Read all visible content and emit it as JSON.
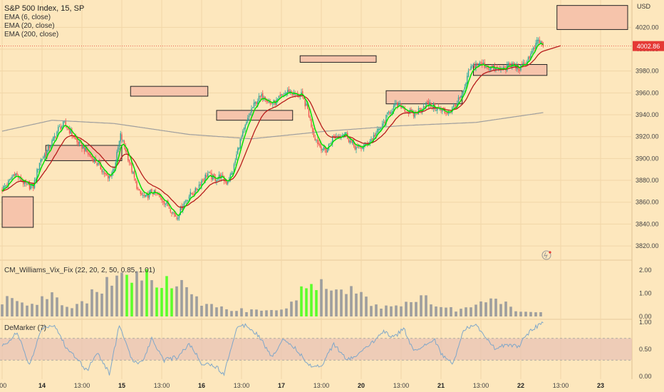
{
  "legend": {
    "title": "S&P 500 Index, 15, SP",
    "ema6": "EMA (6, close)",
    "ema20": "EMA (20, close)",
    "ema200": "EMA (200, close)"
  },
  "vix_label": "CM_Williams_Vix_Fix (22, 20, 2, 50, 0.85, 1.01)",
  "demarker_label": "DeMarker (7)",
  "currency": "USD",
  "last_price": "4002.86",
  "colors": {
    "bg": "#fde7bd",
    "up": "#26a69a",
    "down": "#ef5350",
    "ema6": "#00e000",
    "ema20": "#b71c1c",
    "ema200": "#9e9e9e",
    "vixGray": "#9e9e9e",
    "vixGreen": "#5cff2a",
    "demarker": "#7fa7c9",
    "price_tag": "#e53935",
    "box_fill": "#f6c4ab"
  },
  "chart_data": [
    {
      "type": "candlestick",
      "title": "S&P 500 Index, 15, SP",
      "ylabel": "USD",
      "ylim": [
        3807,
        4045
      ],
      "ytick_labels": [
        "4020.00",
        "4000.00",
        "3980.00",
        "3960.00",
        "3940.00",
        "3920.00",
        "3900.00",
        "3880.00",
        "3860.00",
        "3840.00",
        "3820.00"
      ],
      "yticks": [
        4020,
        4000,
        3980,
        3960,
        3940,
        3920,
        3900,
        3880,
        3860,
        3840,
        3820
      ],
      "xtick_labels": [
        ":00",
        "14",
        "13:00",
        "15",
        "13:00",
        "16",
        "13:00",
        "17",
        "13:00",
        "20",
        "13:00",
        "21",
        "13:00",
        "22",
        "13:00",
        "23"
      ],
      "bold_ticks": [
        "14",
        "15",
        "16",
        "17",
        "20",
        "21",
        "22",
        "23"
      ],
      "last": 4002.86,
      "series_waypoints": [
        [
          0,
          3872
        ],
        [
          5,
          3878
        ],
        [
          10,
          3887
        ],
        [
          15,
          3880
        ],
        [
          20,
          3875
        ],
        [
          25,
          3874
        ],
        [
          30,
          3897
        ],
        [
          35,
          3905
        ],
        [
          40,
          3915
        ],
        [
          45,
          3927
        ],
        [
          50,
          3932
        ],
        [
          55,
          3924
        ],
        [
          60,
          3915
        ],
        [
          65,
          3910
        ],
        [
          70,
          3903
        ],
        [
          75,
          3897
        ],
        [
          80,
          3890
        ],
        [
          85,
          3881
        ],
        [
          90,
          3892
        ],
        [
          95,
          3921
        ],
        [
          100,
          3905
        ],
        [
          105,
          3885
        ],
        [
          110,
          3868
        ],
        [
          115,
          3864
        ],
        [
          120,
          3870
        ],
        [
          125,
          3866
        ],
        [
          130,
          3861
        ],
        [
          135,
          3854
        ],
        [
          140,
          3846
        ],
        [
          145,
          3858
        ],
        [
          150,
          3866
        ],
        [
          155,
          3870
        ],
        [
          160,
          3880
        ],
        [
          165,
          3886
        ],
        [
          170,
          3881
        ],
        [
          175,
          3884
        ],
        [
          180,
          3878
        ],
        [
          185,
          3888
        ],
        [
          190,
          3913
        ],
        [
          195,
          3929
        ],
        [
          200,
          3945
        ],
        [
          205,
          3954
        ],
        [
          210,
          3958
        ],
        [
          215,
          3950
        ],
        [
          220,
          3952
        ],
        [
          225,
          3958
        ],
        [
          230,
          3962
        ],
        [
          235,
          3958
        ],
        [
          240,
          3958
        ],
        [
          245,
          3945
        ],
        [
          250,
          3921
        ],
        [
          255,
          3911
        ],
        [
          260,
          3907
        ],
        [
          265,
          3919
        ],
        [
          270,
          3921
        ],
        [
          275,
          3924
        ],
        [
          280,
          3914
        ],
        [
          285,
          3909
        ],
        [
          290,
          3911
        ],
        [
          295,
          3916
        ],
        [
          300,
          3923
        ],
        [
          305,
          3930
        ],
        [
          310,
          3942
        ],
        [
          315,
          3948
        ],
        [
          320,
          3948
        ],
        [
          325,
          3943
        ],
        [
          330,
          3940
        ],
        [
          335,
          3945
        ],
        [
          340,
          3950
        ],
        [
          345,
          3948
        ],
        [
          350,
          3945
        ],
        [
          355,
          3942
        ],
        [
          360,
          3944
        ],
        [
          365,
          3951
        ],
        [
          370,
          3960
        ],
        [
          375,
          3982
        ],
        [
          380,
          3986
        ],
        [
          385,
          3986
        ],
        [
          390,
          3984
        ],
        [
          395,
          3982
        ],
        [
          400,
          3981
        ],
        [
          405,
          3984
        ],
        [
          410,
          3986
        ],
        [
          415,
          3982
        ],
        [
          420,
          3988
        ],
        [
          425,
          3997
        ],
        [
          430,
          4008
        ],
        [
          434,
          4002.86
        ]
      ],
      "ema200_waypoints": [
        [
          0,
          3925
        ],
        [
          40,
          3935
        ],
        [
          90,
          3932
        ],
        [
          150,
          3922
        ],
        [
          200,
          3918
        ],
        [
          260,
          3925
        ],
        [
          320,
          3930
        ],
        [
          380,
          3933
        ],
        [
          434,
          3942
        ]
      ],
      "zones": [
        {
          "t0": 0,
          "t1": 25,
          "lo": 3837,
          "hi": 3865
        },
        {
          "t0": 35,
          "t1": 96,
          "lo": 3898,
          "hi": 3912
        },
        {
          "t0": 103,
          "t1": 165,
          "lo": 3957,
          "hi": 3966
        },
        {
          "t0": 172,
          "t1": 233,
          "lo": 3935,
          "hi": 3944
        },
        {
          "t0": 239,
          "t1": 300,
          "lo": 3988,
          "hi": 3994
        },
        {
          "t0": 308,
          "t1": 369,
          "lo": 3950,
          "hi": 3962
        },
        {
          "t0": 378,
          "t1": 437,
          "lo": 3976,
          "hi": 3986
        },
        {
          "t0": 445,
          "t1": 505,
          "lo": 4018,
          "hi": 4040
        }
      ]
    },
    {
      "type": "bar",
      "title": "CM_Williams_Vix_Fix (22, 20, 2, 50, 0.85, 1.01)",
      "ylim": [
        0,
        2.3
      ],
      "ytick_labels": [
        "2.00",
        "1.00",
        "0.00"
      ],
      "yticks": [
        2,
        1,
        0
      ],
      "envelope": [
        [
          0,
          0.9
        ],
        [
          20,
          0.5
        ],
        [
          40,
          1.0
        ],
        [
          55,
          0.3
        ],
        [
          75,
          1.3
        ],
        [
          85,
          1.6
        ],
        [
          95,
          2.0
        ],
        [
          105,
          2.0
        ],
        [
          120,
          2.1
        ],
        [
          135,
          2.1
        ],
        [
          145,
          1.4
        ],
        [
          160,
          0.6
        ],
        [
          180,
          0.4
        ],
        [
          205,
          0.3
        ],
        [
          225,
          0.3
        ],
        [
          245,
          1.5
        ],
        [
          258,
          1.6
        ],
        [
          270,
          1.3
        ],
        [
          285,
          1.2
        ],
        [
          300,
          0.5
        ],
        [
          320,
          0.6
        ],
        [
          335,
          1.0
        ],
        [
          350,
          0.5
        ],
        [
          370,
          0.3
        ],
        [
          385,
          0.8
        ],
        [
          400,
          0.7
        ],
        [
          415,
          0.3
        ],
        [
          434,
          0.2
        ]
      ],
      "green_ranges": [
        [
          100,
          105
        ],
        [
          114,
          118
        ],
        [
          124,
          137
        ],
        [
          240,
          253
        ]
      ]
    },
    {
      "type": "line",
      "title": "DeMarker (7)",
      "ylim": [
        -0.05,
        1.05
      ],
      "ytick_labels": [
        "1.00",
        "0.50",
        "0.00"
      ],
      "yticks": [
        1,
        0.5,
        0
      ],
      "band": [
        0.3,
        0.7
      ],
      "waypoints": [
        [
          0,
          0.55
        ],
        [
          12,
          0.8
        ],
        [
          22,
          0.2
        ],
        [
          32,
          0.9
        ],
        [
          42,
          0.95
        ],
        [
          52,
          0.5
        ],
        [
          60,
          0.35
        ],
        [
          68,
          0.1
        ],
        [
          76,
          0.45
        ],
        [
          86,
          0.05
        ],
        [
          94,
          0.95
        ],
        [
          104,
          0.3
        ],
        [
          112,
          0.25
        ],
        [
          120,
          0.7
        ],
        [
          130,
          0.3
        ],
        [
          140,
          0.35
        ],
        [
          150,
          0.6
        ],
        [
          160,
          0.25
        ],
        [
          170,
          0.2
        ],
        [
          178,
          0.05
        ],
        [
          188,
          0.9
        ],
        [
          196,
          0.95
        ],
        [
          206,
          0.75
        ],
        [
          216,
          0.35
        ],
        [
          226,
          0.7
        ],
        [
          236,
          0.5
        ],
        [
          246,
          0.2
        ],
        [
          256,
          0.2
        ],
        [
          266,
          0.6
        ],
        [
          276,
          0.3
        ],
        [
          286,
          0.4
        ],
        [
          296,
          0.6
        ],
        [
          306,
          0.85
        ],
        [
          314,
          0.7
        ],
        [
          322,
          0.9
        ],
        [
          330,
          0.45
        ],
        [
          338,
          0.55
        ],
        [
          346,
          0.7
        ],
        [
          354,
          0.35
        ],
        [
          362,
          0.25
        ],
        [
          370,
          0.85
        ],
        [
          380,
          0.95
        ],
        [
          388,
          0.7
        ],
        [
          396,
          0.5
        ],
        [
          404,
          0.6
        ],
        [
          414,
          0.55
        ],
        [
          424,
          0.85
        ],
        [
          434,
          1.0
        ]
      ]
    }
  ]
}
